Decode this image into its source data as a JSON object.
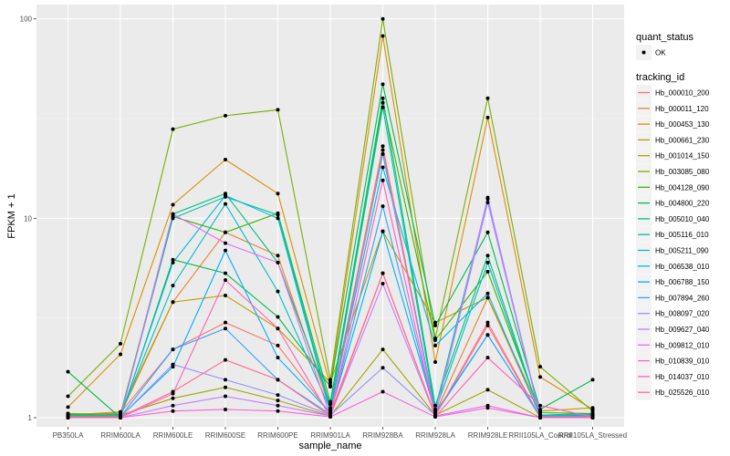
{
  "chart_data": {
    "type": "line",
    "title": "",
    "xlabel": "sample_name",
    "ylabel": "FPKM + 1",
    "yscale": "log10",
    "ylim": [
      0.9,
      118
    ],
    "yticks": [
      1,
      10,
      100
    ],
    "ytick_labels": [
      "1",
      "10",
      "100"
    ],
    "grid": true,
    "categories": [
      "PB350LA",
      "RRIM600LA",
      "RRIM600LE",
      "RRIM600SE",
      "RRIM600PE",
      "RRIM901LA",
      "RRIM928BA",
      "RRIM928LA",
      "RRIM928LE",
      "RRII105LA_Control",
      "RRII105LA_Stressed"
    ],
    "point_legend": {
      "title": "quant_status",
      "entries": [
        "OK"
      ]
    },
    "legend": {
      "title": "tracking_id",
      "position": "right"
    },
    "series": [
      {
        "name": "Hb_000010_200",
        "color": "#F8766D",
        "values": [
          1.02,
          1.06,
          2.2,
          3.0,
          2.3,
          1.05,
          5.3,
          1.02,
          2.9,
          1.0,
          1.02
        ]
      },
      {
        "name": "Hb_000011_120",
        "color": "#EA8331",
        "values": [
          1.03,
          1.07,
          3.8,
          8.5,
          6.5,
          1.1,
          23.0,
          1.05,
          4.0,
          1.03,
          1.05
        ]
      },
      {
        "name": "Hb_000453_130",
        "color": "#D89000",
        "values": [
          1.13,
          2.08,
          11.7,
          19.7,
          13.3,
          1.45,
          82.0,
          1.9,
          32.0,
          1.6,
          1.1
        ]
      },
      {
        "name": "Hb_000661_230",
        "color": "#C09B00",
        "values": [
          1.05,
          1.04,
          3.8,
          4.1,
          2.8,
          1.5,
          8.6,
          3.0,
          4.0,
          1.08,
          1.12
        ]
      },
      {
        "name": "Hb_001014_150",
        "color": "#A3A500",
        "values": [
          1.02,
          1.03,
          1.25,
          1.42,
          1.22,
          1.02,
          2.2,
          1.03,
          1.38,
          1.0,
          1.02
        ]
      },
      {
        "name": "Hb_003085_080",
        "color": "#7CAE00",
        "values": [
          1.28,
          2.35,
          28.0,
          32.7,
          35.0,
          1.55,
          100.0,
          2.5,
          40.0,
          1.8,
          1.08
        ]
      },
      {
        "name": "Hb_004128_090",
        "color": "#39B600",
        "values": [
          1.04,
          1.04,
          10.2,
          8.5,
          10.6,
          1.2,
          38.0,
          2.45,
          5.4,
          1.06,
          1.05
        ]
      },
      {
        "name": "Hb_004800_220",
        "color": "#00BB4E",
        "values": [
          1.7,
          1.0,
          6.2,
          5.3,
          3.2,
          1.43,
          47.0,
          2.9,
          8.5,
          1.1,
          1.55
        ]
      },
      {
        "name": "Hb_005010_040",
        "color": "#00BF7D",
        "values": [
          1.03,
          1.02,
          10.5,
          13.3,
          6.0,
          1.17,
          40.0,
          1.15,
          6.5,
          1.03,
          1.04
        ]
      },
      {
        "name": "Hb_005116_010",
        "color": "#00C1A3",
        "values": [
          1.02,
          1.02,
          10.0,
          12.8,
          10.4,
          1.12,
          36.0,
          1.1,
          12.5,
          1.02,
          1.03
        ]
      },
      {
        "name": "Hb_005211_090",
        "color": "#00BFC4",
        "values": [
          1.02,
          1.03,
          4.6,
          11.8,
          4.3,
          1.1,
          21.0,
          1.08,
          6.0,
          1.03,
          1.04
        ]
      },
      {
        "name": "Hb_006538_010",
        "color": "#00BAE0",
        "values": [
          1.01,
          1.01,
          6.0,
          13.0,
          10.0,
          1.08,
          18.0,
          2.3,
          4.2,
          1.02,
          1.02
        ]
      },
      {
        "name": "Hb_006788_150",
        "color": "#00B0F6",
        "values": [
          1.01,
          1.01,
          1.8,
          6.9,
          2.0,
          1.06,
          8.6,
          1.06,
          2.6,
          1.01,
          1.02
        ]
      },
      {
        "name": "Hb_007894_260",
        "color": "#35A2FF",
        "values": [
          1.01,
          1.01,
          2.2,
          2.8,
          1.55,
          1.04,
          11.5,
          1.04,
          2.6,
          1.01,
          1.01
        ]
      },
      {
        "name": "Hb_008097_020",
        "color": "#9590FF",
        "values": [
          1.01,
          1.01,
          1.85,
          1.55,
          1.3,
          1.03,
          1.78,
          1.03,
          12.0,
          1.01,
          1.01
        ]
      },
      {
        "name": "Hb_009627_040",
        "color": "#C77CFF",
        "values": [
          1.0,
          1.0,
          1.15,
          1.28,
          1.15,
          1.02,
          4.7,
          1.02,
          12.7,
          1.0,
          1.0
        ]
      },
      {
        "name": "Hb_009812_010",
        "color": "#E76BF3",
        "values": [
          1.0,
          1.0,
          10.5,
          7.5,
          6.0,
          1.02,
          22.0,
          1.02,
          1.15,
          1.0,
          1.0
        ]
      },
      {
        "name": "Hb_010839_010",
        "color": "#FA62DB",
        "values": [
          1.0,
          1.0,
          1.08,
          1.1,
          1.08,
          1.01,
          1.35,
          1.01,
          1.12,
          1.0,
          1.0
        ]
      },
      {
        "name": "Hb_014037_010",
        "color": "#FF62BC",
        "values": [
          1.0,
          1.0,
          1.32,
          4.9,
          2.8,
          1.01,
          15.5,
          1.01,
          2.0,
          1.15,
          1.01
        ]
      },
      {
        "name": "Hb_025526_010",
        "color": "#FF6C91",
        "values": [
          1.01,
          1.01,
          1.35,
          1.95,
          1.55,
          1.02,
          5.3,
          1.02,
          3.0,
          1.01,
          1.01
        ]
      }
    ]
  }
}
